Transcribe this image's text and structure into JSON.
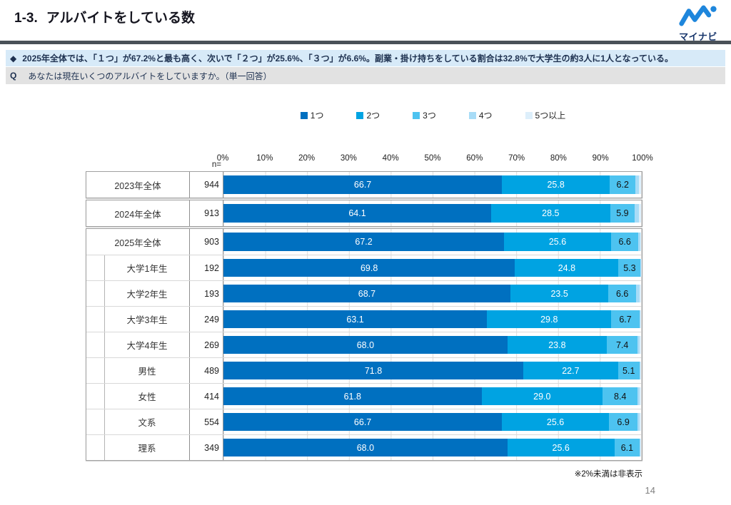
{
  "header": {
    "section_number": "1-3.",
    "title": "アルバイトをしている数",
    "logo_text": "マイナビ",
    "logo_color": "#1e86dc"
  },
  "callouts": {
    "summary_marker": "◆",
    "summary": "2025年全体では、「１つ」が67.2%と最も高く、次いで「２つ」が25.6%、「３つ」が6.6%。副業・掛け持ちをしている割合は32.8%で大学生の約3人に1人となっている。",
    "question_marker": "Q",
    "question": "あなたは現在いくつのアルバイトをしていますか。（単一回答）"
  },
  "chart_data": {
    "type": "bar",
    "stacked": true,
    "orientation": "horizontal",
    "x_unit": "%",
    "x_range": [
      0,
      100
    ],
    "x_ticks": [
      "0%",
      "10%",
      "20%",
      "30%",
      "40%",
      "50%",
      "60%",
      "70%",
      "80%",
      "90%",
      "100%"
    ],
    "n_label": "n=",
    "categories": [
      "2023年全体",
      "2024年全体",
      "2025年全体",
      "大学1年生",
      "大学2年生",
      "大学3年生",
      "大学4年生",
      "男性",
      "女性",
      "文系",
      "理系"
    ],
    "n_values": [
      "944",
      "913",
      "903",
      "192",
      "193",
      "249",
      "269",
      "489",
      "414",
      "554",
      "349"
    ],
    "groups": [
      [
        0
      ],
      [
        1
      ],
      [
        2,
        3,
        4,
        5,
        6,
        7,
        8,
        9,
        10
      ]
    ],
    "indented": [
      false,
      false,
      false,
      true,
      true,
      true,
      true,
      true,
      true,
      true,
      true
    ],
    "series": [
      {
        "name": "1つ",
        "color": "#0070C0",
        "text_color": "#ffffff",
        "values": [
          "66.7",
          "64.1",
          "67.2",
          "69.8",
          "68.7",
          "63.1",
          "68.0",
          "71.8",
          "61.8",
          "66.7",
          "68.0"
        ]
      },
      {
        "name": "2つ",
        "color": "#00A3E2",
        "text_color": "#ffffff",
        "values": [
          "25.8",
          "28.5",
          "25.6",
          "24.8",
          "23.5",
          "29.8",
          "23.8",
          "22.7",
          "29.0",
          "25.6",
          "25.6"
        ]
      },
      {
        "name": "3つ",
        "color": "#4DC3F0",
        "text_color": "#111111",
        "values": [
          "6.2",
          "5.9",
          "6.6",
          "5.3",
          "6.6",
          "6.7",
          "7.4",
          "5.1",
          "8.4",
          "6.9",
          "6.1"
        ]
      },
      {
        "name": "4つ",
        "color": "#A8DCF7",
        "text_color": "#111111",
        "values": []
      },
      {
        "name": "5つ以上",
        "color": "#DDEFFB",
        "text_color": "#111111",
        "values": []
      }
    ],
    "values_hidden_below_pct": 2,
    "legend_position": "top"
  },
  "footnote": "※2%未満は非表示",
  "page_number": "14"
}
